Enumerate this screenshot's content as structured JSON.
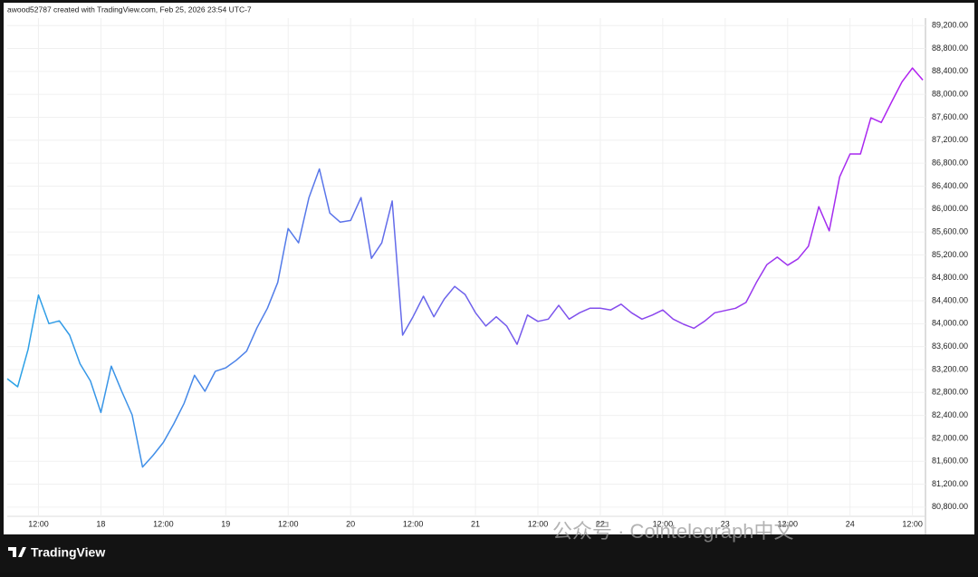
{
  "chart_data": {
    "type": "line",
    "header": "awood52787 created with TradingView.com, Feb 25, 2026 23:54 UTC-7",
    "brand": "TradingView",
    "watermark": "公众号 · Cointelegraph中文",
    "x": [
      -6,
      -4,
      -2,
      0,
      2,
      4,
      6,
      8,
      10,
      12,
      14,
      16,
      18,
      20,
      22,
      24,
      26,
      28,
      30,
      32,
      34,
      36,
      38,
      40,
      42,
      44,
      46,
      48,
      50,
      52,
      54,
      56,
      58,
      60,
      62,
      64,
      66,
      68,
      70,
      72,
      74,
      76,
      78,
      80,
      82,
      84,
      86,
      88,
      90,
      92,
      94,
      96,
      98,
      100,
      102,
      104,
      106,
      108,
      110,
      112,
      114,
      116,
      118,
      120,
      122,
      124,
      126,
      128,
      130,
      132,
      134,
      136,
      138,
      140,
      142,
      144,
      146,
      148,
      150,
      152,
      154,
      156,
      158,
      160,
      162,
      164,
      166,
      168,
      170
    ],
    "values": [
      83040,
      82900,
      83550,
      84500,
      84000,
      84050,
      83800,
      83300,
      83000,
      82450,
      83260,
      82820,
      82410,
      81500,
      81700,
      81930,
      82250,
      82610,
      83100,
      82820,
      83170,
      83230,
      83360,
      83520,
      83930,
      84270,
      84720,
      85660,
      85410,
      86200,
      86700,
      85930,
      85770,
      85800,
      86200,
      85140,
      85410,
      86140,
      83800,
      84120,
      84480,
      84120,
      84430,
      84650,
      84510,
      84190,
      83960,
      84120,
      83960,
      83640,
      84150,
      84040,
      84080,
      84320,
      84080,
      84190,
      84270,
      84270,
      84240,
      84340,
      84190,
      84080,
      84150,
      84240,
      84080,
      83990,
      83920,
      84040,
      84190,
      84230,
      84270,
      84370,
      84720,
      85030,
      85160,
      85020,
      85130,
      85350,
      86040,
      85620,
      86560,
      86960,
      86960,
      87590,
      87510,
      87870,
      88220,
      88460,
      88250
    ],
    "gradient": [
      "#2aa3e6",
      "#b31ff0"
    ],
    "xlim": [
      -6,
      170.5
    ],
    "xticks": [
      {
        "value": 0,
        "label": "12:00"
      },
      {
        "value": 12,
        "label": "18"
      },
      {
        "value": 24,
        "label": "12:00"
      },
      {
        "value": 36,
        "label": "19"
      },
      {
        "value": 48,
        "label": "12:00"
      },
      {
        "value": 60,
        "label": "20"
      },
      {
        "value": 72,
        "label": "12:00"
      },
      {
        "value": 84,
        "label": "21"
      },
      {
        "value": 96,
        "label": "12:00"
      },
      {
        "value": 108,
        "label": "22"
      },
      {
        "value": 120,
        "label": "12:00"
      },
      {
        "value": 132,
        "label": "23"
      },
      {
        "value": 144,
        "label": "12:00"
      },
      {
        "value": 156,
        "label": "24"
      },
      {
        "value": 168,
        "label": "12:00"
      }
    ],
    "ylim": [
      80640,
      89330
    ],
    "yticks": [
      {
        "value": 80800,
        "label": "80,800.00"
      },
      {
        "value": 81200,
        "label": "81,200.00"
      },
      {
        "value": 81600,
        "label": "81,600.00"
      },
      {
        "value": 82000,
        "label": "82,000.00"
      },
      {
        "value": 82400,
        "label": "82,400.00"
      },
      {
        "value": 82800,
        "label": "82,800.00"
      },
      {
        "value": 83200,
        "label": "83,200.00"
      },
      {
        "value": 83600,
        "label": "83,600.00"
      },
      {
        "value": 84000,
        "label": "84,000.00"
      },
      {
        "value": 84400,
        "label": "84,400.00"
      },
      {
        "value": 84800,
        "label": "84,800.00"
      },
      {
        "value": 85200,
        "label": "85,200.00"
      },
      {
        "value": 85600,
        "label": "85,600.00"
      },
      {
        "value": 86000,
        "label": "86,000.00"
      },
      {
        "value": 86400,
        "label": "86,400.00"
      },
      {
        "value": 86800,
        "label": "86,800.00"
      },
      {
        "value": 87200,
        "label": "87,200.00"
      },
      {
        "value": 87600,
        "label": "87,600.00"
      },
      {
        "value": 88000,
        "label": "88,000.00"
      },
      {
        "value": 88400,
        "label": "88,400.00"
      },
      {
        "value": 88800,
        "label": "88,800.00"
      },
      {
        "value": 89200,
        "label": "89,200.00"
      }
    ],
    "grid": true
  }
}
